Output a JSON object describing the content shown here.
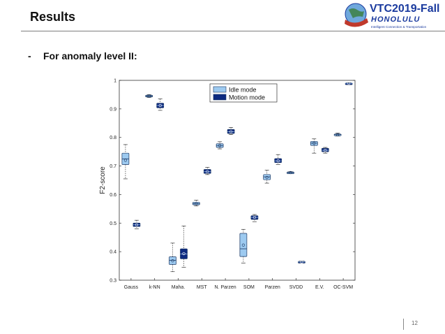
{
  "slide": {
    "title": "Results",
    "bullet_dash": "-",
    "bullet_text": "For anomaly level II:",
    "page_number": "12"
  },
  "logo": {
    "line1": "VTC2019-Fall",
    "line2": "HONOLULU",
    "line3": "Intelligent Connection & Transportation"
  },
  "colors": {
    "idle": "#9dcaf0",
    "motion": "#0d2a80",
    "logo_blue": "#1a3a9e"
  },
  "chart_data": {
    "type": "box",
    "ylabel": "F2-score",
    "xlabel": "",
    "title": "",
    "ylim": [
      0.3,
      1.0
    ],
    "yticks": [
      "0.3",
      "0.4",
      "0.5",
      "0.6",
      "0.7",
      "0.8",
      "0.9",
      "1"
    ],
    "categories": [
      "Gauss",
      "k-NN",
      "Maha.",
      "MST",
      "N. Parzen",
      "SOM",
      "Parzen",
      "SVDD",
      "E.V.",
      "OC-SVM"
    ],
    "legend_position": "top-center",
    "series": [
      {
        "name": "Idle mode",
        "boxes": [
          {
            "min": 0.655,
            "q1": 0.705,
            "median": 0.725,
            "q3": 0.745,
            "max": 0.775,
            "mean": 0.72
          },
          {
            "min": 0.94,
            "q1": 0.942,
            "median": 0.945,
            "q3": 0.948,
            "max": 0.95,
            "mean": 0.945
          },
          {
            "min": 0.33,
            "q1": 0.355,
            "median": 0.37,
            "q3": 0.382,
            "max": 0.43,
            "mean": 0.368
          },
          {
            "min": 0.56,
            "q1": 0.564,
            "median": 0.568,
            "q3": 0.573,
            "max": 0.58,
            "mean": 0.568
          },
          {
            "min": 0.76,
            "q1": 0.765,
            "median": 0.772,
            "q3": 0.778,
            "max": 0.785,
            "mean": 0.772
          },
          {
            "min": 0.36,
            "q1": 0.383,
            "median": 0.41,
            "q3": 0.464,
            "max": 0.478,
            "mean": 0.423
          },
          {
            "min": 0.64,
            "q1": 0.652,
            "median": 0.662,
            "q3": 0.67,
            "max": 0.685,
            "mean": 0.66
          },
          {
            "min": 0.675,
            "q1": 0.676,
            "median": 0.677,
            "q3": 0.679,
            "max": 0.68,
            "mean": 0.677
          },
          {
            "min": 0.745,
            "q1": 0.772,
            "median": 0.78,
            "q3": 0.786,
            "max": 0.795,
            "mean": 0.78
          },
          {
            "min": 0.805,
            "q1": 0.807,
            "median": 0.81,
            "q3": 0.812,
            "max": 0.815,
            "mean": 0.81
          }
        ]
      },
      {
        "name": "Motion mode",
        "boxes": [
          {
            "min": 0.48,
            "q1": 0.488,
            "median": 0.494,
            "q3": 0.5,
            "max": 0.51,
            "mean": 0.494
          },
          {
            "min": 0.895,
            "q1": 0.904,
            "median": 0.912,
            "q3": 0.92,
            "max": 0.935,
            "mean": 0.912
          },
          {
            "min": 0.345,
            "q1": 0.375,
            "median": 0.392,
            "q3": 0.41,
            "max": 0.49,
            "mean": 0.393
          },
          {
            "min": 0.67,
            "q1": 0.674,
            "median": 0.68,
            "q3": 0.688,
            "max": 0.695,
            "mean": 0.68
          },
          {
            "min": 0.81,
            "q1": 0.814,
            "median": 0.82,
            "q3": 0.828,
            "max": 0.835,
            "mean": 0.82
          },
          {
            "min": 0.505,
            "q1": 0.513,
            "median": 0.52,
            "q3": 0.526,
            "max": 0.53,
            "mean": 0.52
          },
          {
            "min": 0.705,
            "q1": 0.712,
            "median": 0.718,
            "q3": 0.726,
            "max": 0.74,
            "mean": 0.718
          },
          {
            "min": 0.362,
            "q1": 0.363,
            "median": 0.364,
            "q3": 0.366,
            "max": 0.367,
            "mean": 0.364
          },
          {
            "min": 0.745,
            "q1": 0.75,
            "median": 0.755,
            "q3": 0.762,
            "max": 0.765,
            "mean": 0.755
          },
          {
            "min": 0.988,
            "q1": 0.989,
            "median": 0.99,
            "q3": 0.991,
            "max": 0.992,
            "mean": 0.99
          }
        ]
      }
    ]
  }
}
